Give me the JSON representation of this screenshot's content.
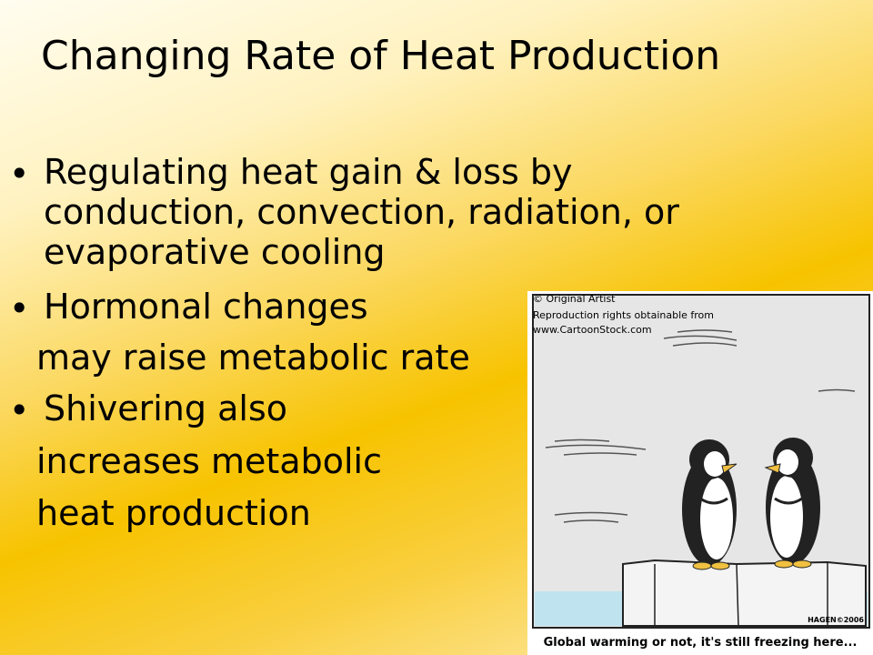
{
  "slide": {
    "title": "Changing Rate of Heat Production",
    "bullets": [
      {
        "lines": [
          "Regulating heat gain & loss by",
          "conduction, convection, radiation, or",
          "evaporative cooling"
        ]
      },
      {
        "lines": [
          "Hormonal changes",
          "may raise metabolic rate"
        ]
      },
      {
        "lines": [
          "Shivering also",
          "increases metabolic",
          "heat production"
        ]
      }
    ],
    "cartoon": {
      "credit": [
        "© Original Artist",
        "Reproduction rights obtainable from",
        "www.CartoonStock.com"
      ],
      "signature": "HAGEN©2006",
      "caption": "Global warming or not, it's still freezing here..."
    }
  }
}
